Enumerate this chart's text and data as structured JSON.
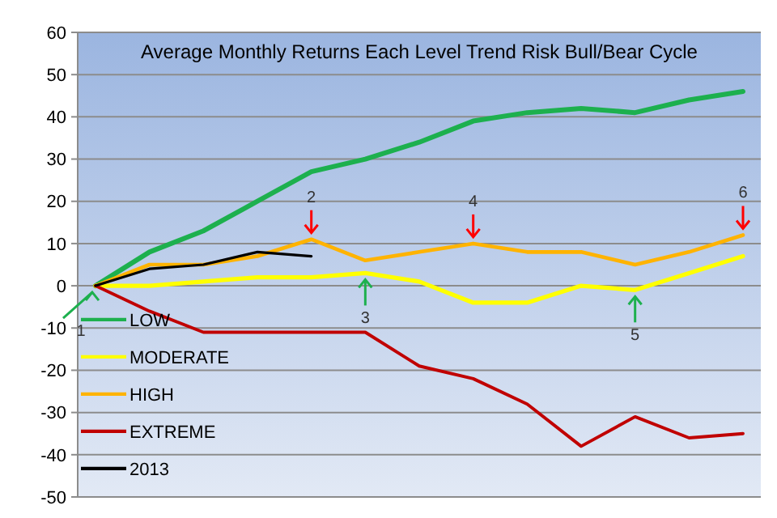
{
  "chart_data": {
    "type": "line",
    "title": "Average Monthly Returns Each Level Trend Risk Bull/Bear Cycle",
    "categories": [
      null,
      null,
      null,
      null,
      null,
      null,
      null,
      null,
      null,
      null,
      null,
      null,
      null
    ],
    "series": [
      {
        "name": "LOW",
        "color": "#1db04e",
        "values": [
          0,
          8,
          13,
          20,
          27,
          30,
          34,
          39,
          41,
          42,
          41,
          44,
          46
        ]
      },
      {
        "name": "MODERATE",
        "color": "#ffff00",
        "values": [
          0,
          0,
          1,
          2,
          2,
          3,
          1,
          -4,
          -4,
          0,
          -1,
          3,
          7
        ]
      },
      {
        "name": "HIGH",
        "color": "#ffb300",
        "values": [
          0,
          5,
          5,
          7,
          11,
          6,
          8,
          10,
          8,
          8,
          5,
          8,
          12
        ]
      },
      {
        "name": "EXTREME",
        "color": "#c00000",
        "values": [
          0,
          -6,
          -11,
          -11,
          -11,
          -11,
          -19,
          -22,
          -28,
          -38,
          -31,
          -36,
          -35
        ]
      },
      {
        "name": "2013",
        "color": "#000000",
        "values": [
          0,
          4,
          5,
          8,
          7,
          null,
          null,
          null,
          null,
          null,
          null,
          null,
          null
        ]
      }
    ],
    "ylim": [
      -50,
      60
    ],
    "yticks": [
      -50,
      -40,
      -30,
      -20,
      -10,
      0,
      10,
      20,
      30,
      40,
      50,
      60
    ],
    "grid": "y",
    "legend": "bottom left",
    "marker": "none",
    "line_style": "solid",
    "annotations": [
      "1",
      {
        "text": "2",
        "y": 11
      },
      {
        "text": "3",
        "y": 3
      },
      {
        "text": "4",
        "y": 10
      },
      {
        "text": "5",
        "y": -1
      },
      {
        "text": "6",
        "y": 12
      }
    ]
  }
}
